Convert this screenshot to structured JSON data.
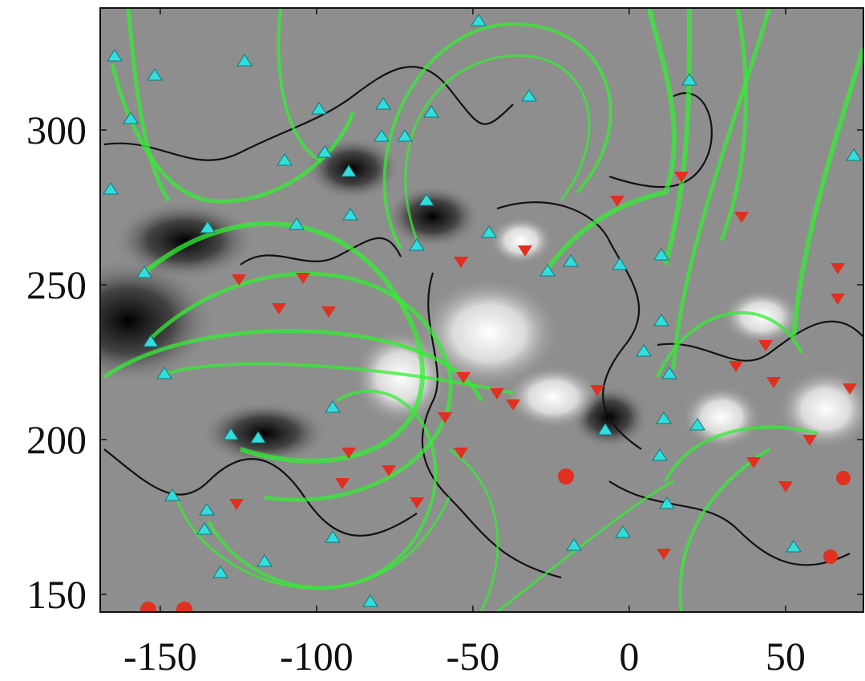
{
  "chart_data": {
    "type": "image",
    "xlim": [
      -169.2,
      74.9
    ],
    "ylim": [
      144.3,
      339.4
    ],
    "xticks": [
      -150,
      -100,
      -50,
      0,
      50
    ],
    "yticks": [
      150,
      200,
      250,
      300
    ]
  }
}
